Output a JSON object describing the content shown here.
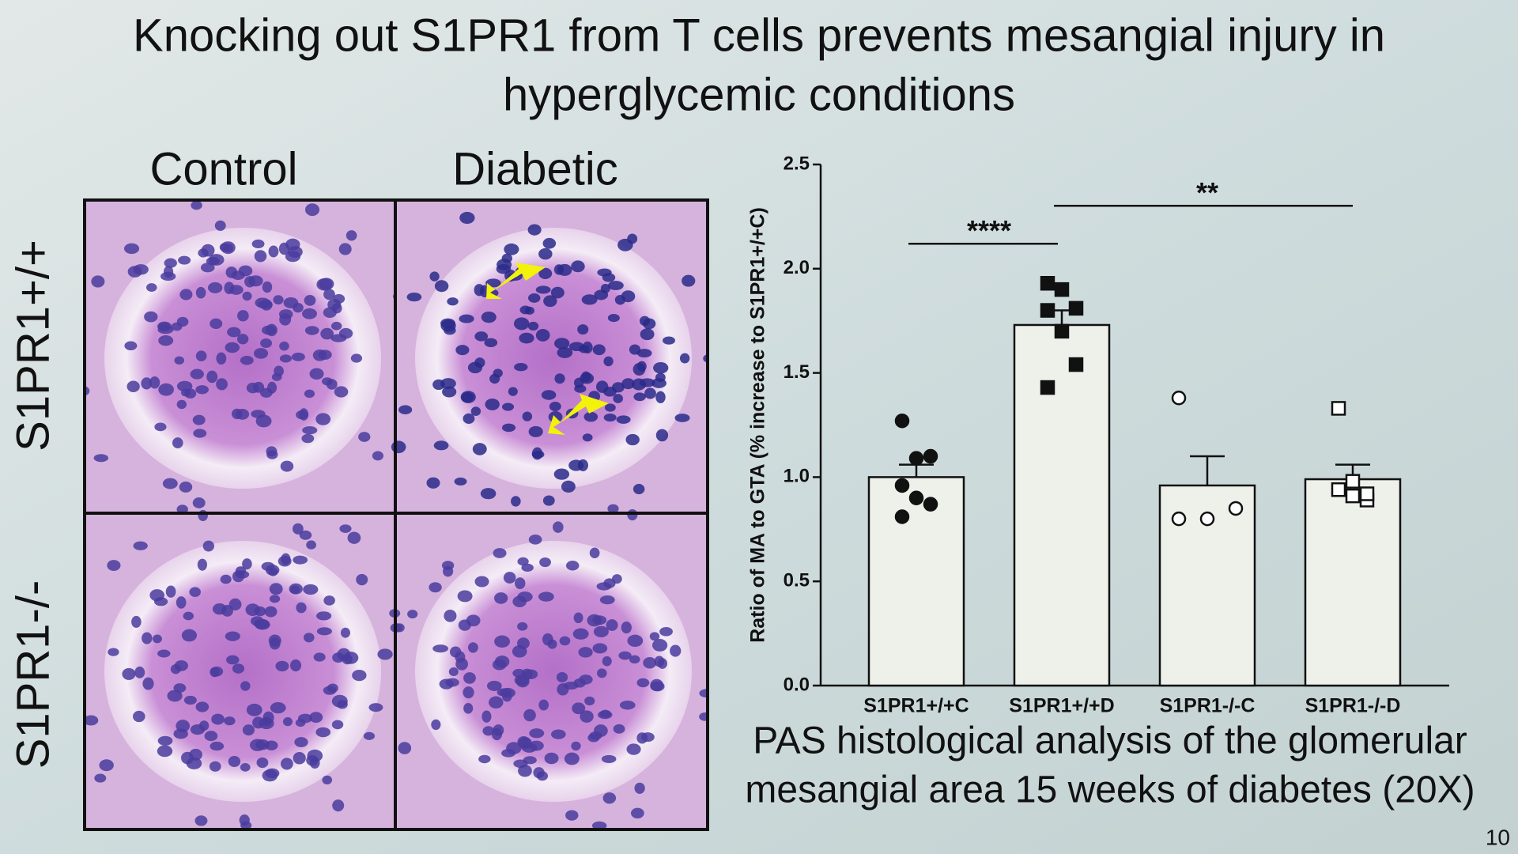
{
  "title": "Knocking out S1PR1 from T cells prevents mesangial injury in hyperglycemic conditions",
  "columns": [
    "Control",
    "Diabetic"
  ],
  "rows": [
    "S1PR1+/+",
    "S1PR1-/-"
  ],
  "caption": [
    "PAS histological analysis of the glomerular",
    "mesangial area 15 weeks of diabetes (20X)"
  ],
  "page_number": "10",
  "chart_data": {
    "type": "bar",
    "ylabel": "Ratio of MA to GTA (% increase to S1PR1+/+C)",
    "categories": [
      "S1PR1+/+C",
      "S1PR1+/+D",
      "S1PR1-/-C",
      "S1PR1-/-D"
    ],
    "values": [
      1.0,
      1.73,
      0.96,
      0.99
    ],
    "errors": [
      0.06,
      0.07,
      0.14,
      0.07
    ],
    "points": [
      [
        1.27,
        1.09,
        1.1,
        0.96,
        0.9,
        0.87,
        0.81
      ],
      [
        1.93,
        1.9,
        1.81,
        1.8,
        1.7,
        1.54,
        1.43
      ],
      [
        1.38,
        0.8,
        0.85,
        0.8
      ],
      [
        1.33,
        0.98,
        0.89,
        0.94,
        0.91,
        0.92
      ]
    ],
    "markers": [
      "circle",
      "square",
      "circle",
      "square"
    ],
    "marker_filled": [
      true,
      true,
      false,
      false
    ],
    "color": "#eef0ea",
    "ylim": [
      0,
      2.5
    ],
    "yticks": [
      {
        "value": 0,
        "label": "0.0"
      },
      0.5,
      {
        "value": 1,
        "label": "1.0"
      },
      1.5,
      {
        "value": 2,
        "label": "2.0"
      },
      2.5
    ],
    "annotations": [
      {
        "text": "****",
        "between": [
          "S1PR1+/+C",
          "S1PR1+/+D"
        ]
      },
      {
        "text": "**",
        "between": [
          "S1PR1+/+D",
          "S1PR1-/-D"
        ]
      }
    ]
  }
}
